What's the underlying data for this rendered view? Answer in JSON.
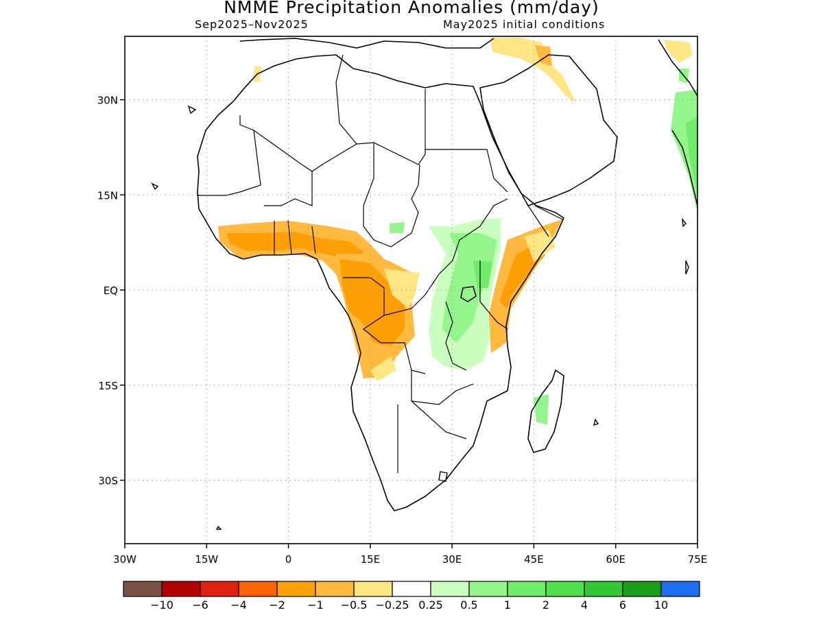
{
  "title": "NMME Precipitation Anomalies (mm/day)",
  "subtitle_left": "Sep2025–Nov2025",
  "subtitle_right": "May2025 initial conditions",
  "map": {
    "lon_range": [
      -30,
      75
    ],
    "lat_range": [
      -40,
      40
    ],
    "x_ticks": [
      "30W",
      "15W",
      "0",
      "15E",
      "30E",
      "45E",
      "60E",
      "75E"
    ],
    "y_ticks": [
      "30N",
      "15N",
      "EQ",
      "15S",
      "30S"
    ],
    "grid": "dotted"
  },
  "colorbar": {
    "labels": [
      "−10",
      "−6",
      "−4",
      "−2",
      "−1",
      "−0.5",
      "−0.25",
      "0.25",
      "0.5",
      "1",
      "2",
      "4",
      "6",
      "10"
    ],
    "colors": [
      "#7a5246",
      "#b30000",
      "#e0200e",
      "#fb6404",
      "#fd9e05",
      "#feb93e",
      "#ffe583",
      "#ffffff",
      "#cbffc0",
      "#94f58c",
      "#70ec6a",
      "#4fe04b",
      "#34c634",
      "#1a9e1a",
      "#1e6ef0"
    ]
  }
}
